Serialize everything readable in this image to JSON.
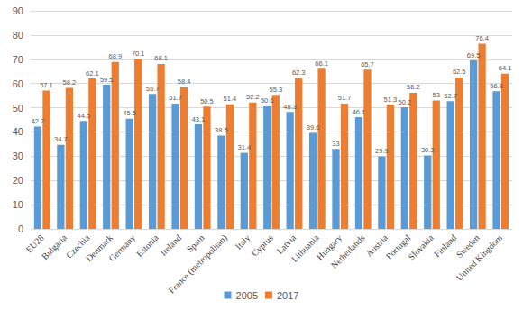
{
  "chart_data": {
    "type": "bar",
    "categories": [
      "EU28",
      "Bulgaria",
      "Czechia",
      "Denmark",
      "Germany",
      "Estonia",
      "Ireland",
      "Spain",
      "France (metropolitan)",
      "Italy",
      "Cyprus",
      "Latvia",
      "Lithuania",
      "Hungary",
      "Netherlands",
      "Austria",
      "Portugal",
      "Slovakia",
      "Finland",
      "Sweden",
      "United Kingdom"
    ],
    "series": [
      {
        "name": "2005",
        "color": "#5b9bd5",
        "values": [
          42.2,
          34.7,
          44.5,
          59.5,
          45.5,
          55.7,
          51.7,
          43.1,
          38.5,
          31.4,
          50.6,
          48.3,
          39.6,
          33,
          46.1,
          29.9,
          50.2,
          30.3,
          52.7,
          69.5,
          56.8
        ]
      },
      {
        "name": "2017",
        "color": "#ed7d31",
        "values": [
          57.1,
          58.2,
          62.1,
          68.9,
          70.1,
          68.1,
          58.4,
          50.5,
          51.4,
          52.2,
          55.3,
          62.3,
          66.1,
          51.7,
          65.7,
          51.3,
          56.2,
          53,
          62.5,
          76.4,
          64.1
        ]
      }
    ],
    "ylim": [
      0,
      90
    ],
    "yticks": [
      0,
      10,
      20,
      30,
      40,
      50,
      60,
      70,
      80,
      90
    ],
    "grid": true,
    "legend": "bottom",
    "data_labels": true
  }
}
